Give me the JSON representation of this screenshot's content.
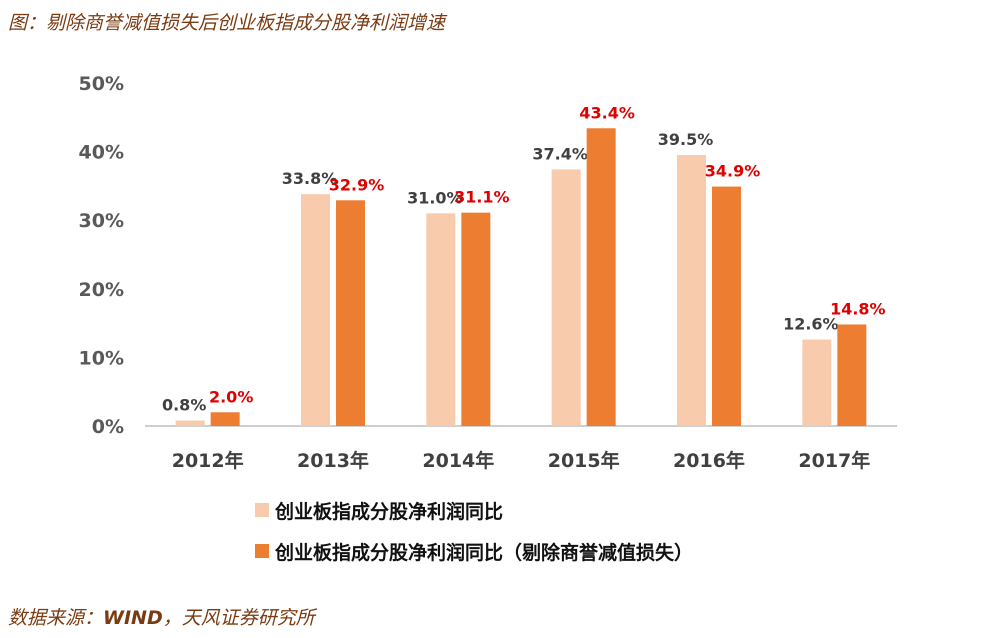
{
  "header": {
    "title": "图：剔除商誉减值损失后创业板指成分股净利润增速"
  },
  "footer": {
    "source_prefix": "数据来源：",
    "source_wind": "WIND",
    "source_rest": "，天风证券研究所"
  },
  "chart_data": {
    "type": "bar",
    "title": "图：剔除商誉减值损失后创业板指成分股净利润增速",
    "xlabel": "",
    "ylabel": "",
    "categories": [
      "2012年",
      "2013年",
      "2014年",
      "2015年",
      "2016年",
      "2017年"
    ],
    "series": [
      {
        "name": "创业板指成分股净利润同比",
        "values": [
          0.8,
          33.8,
          31.0,
          37.4,
          39.5,
          12.6
        ],
        "labels": [
          "0.8%",
          "33.8%",
          "31.0%",
          "37.4%",
          "39.5%",
          "12.6%"
        ],
        "color": "#F8CBAD",
        "label_color": "#404040"
      },
      {
        "name": "创业板指成分股净利润同比（剔除商誉减值损失）",
        "values": [
          2.0,
          32.9,
          31.1,
          43.4,
          34.9,
          14.8
        ],
        "labels": [
          "2.0%",
          "32.9%",
          "31.1%",
          "43.4%",
          "34.9%",
          "14.8%"
        ],
        "color": "#ED7D31",
        "label_color": "#E00000"
      }
    ],
    "ylim": [
      0,
      50
    ],
    "yticks": [
      "0%",
      "10%",
      "20%",
      "30%",
      "40%",
      "50%"
    ],
    "grid": false,
    "legend_position": "bottom"
  }
}
